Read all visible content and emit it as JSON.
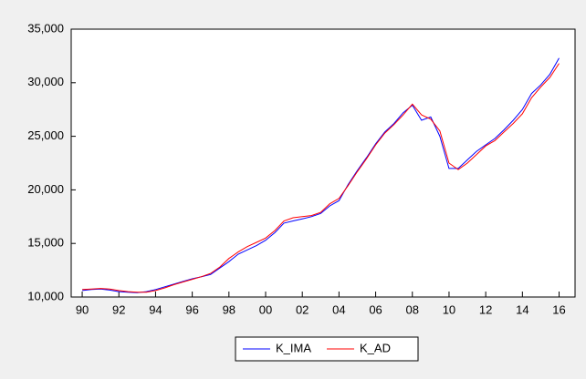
{
  "chart_data": {
    "type": "line",
    "x": [
      1990.0,
      1990.5,
      1991.0,
      1991.5,
      1992.0,
      1992.5,
      1993.0,
      1993.5,
      1994.0,
      1994.5,
      1995.0,
      1995.5,
      1996.0,
      1996.5,
      1997.0,
      1997.5,
      1998.0,
      1998.5,
      1999.0,
      1999.5,
      2000.0,
      2000.5,
      2001.0,
      2001.5,
      2002.0,
      2002.5,
      2003.0,
      2003.5,
      2004.0,
      2004.5,
      2005.0,
      2005.5,
      2006.0,
      2006.5,
      2007.0,
      2007.5,
      2008.0,
      2008.5,
      2009.0,
      2009.5,
      2010.0,
      2010.5,
      2011.0,
      2011.5,
      2012.0,
      2012.5,
      2013.0,
      2013.5,
      2014.0,
      2014.5,
      2015.0,
      2015.5,
      2016.0
    ],
    "series": [
      {
        "name": "K_IMA",
        "color": "#0000ff",
        "values": [
          10600,
          10700,
          10750,
          10650,
          10500,
          10450,
          10400,
          10500,
          10700,
          10950,
          11200,
          11450,
          11700,
          11900,
          12100,
          12700,
          13300,
          14000,
          14400,
          14800,
          15300,
          16000,
          16900,
          17100,
          17300,
          17500,
          17800,
          18500,
          19000,
          20500,
          21800,
          23000,
          24300,
          25400,
          26200,
          27200,
          27900,
          26500,
          26800,
          25000,
          22000,
          22000,
          22800,
          23600,
          24200,
          24800,
          25600,
          26500,
          27500,
          29000,
          29800,
          30800,
          32300
        ]
      },
      {
        "name": "K_AD",
        "color": "#ff0000",
        "values": [
          10700,
          10750,
          10800,
          10750,
          10600,
          10500,
          10450,
          10450,
          10600,
          10850,
          11150,
          11400,
          11650,
          11900,
          12200,
          12800,
          13600,
          14200,
          14700,
          15100,
          15500,
          16200,
          17100,
          17400,
          17500,
          17600,
          17900,
          18700,
          19200,
          20400,
          21700,
          22900,
          24200,
          25300,
          26100,
          27000,
          28000,
          27000,
          26600,
          25500,
          22500,
          21900,
          22500,
          23300,
          24100,
          24600,
          25400,
          26200,
          27100,
          28600,
          29600,
          30500,
          31800
        ]
      }
    ],
    "xlim": [
      1989.4,
      2016.87
    ],
    "xticks": [
      {
        "value": 1990,
        "label": "90"
      },
      {
        "value": 1992,
        "label": "92"
      },
      {
        "value": 1994,
        "label": "94"
      },
      {
        "value": 1996,
        "label": "96"
      },
      {
        "value": 1998,
        "label": "98"
      },
      {
        "value": 2000,
        "label": "00"
      },
      {
        "value": 2002,
        "label": "02"
      },
      {
        "value": 2004,
        "label": "04"
      },
      {
        "value": 2006,
        "label": "06"
      },
      {
        "value": 2008,
        "label": "08"
      },
      {
        "value": 2010,
        "label": "10"
      },
      {
        "value": 2012,
        "label": "12"
      },
      {
        "value": 2014,
        "label": "14"
      },
      {
        "value": 2016,
        "label": "16"
      }
    ],
    "ylim": [
      10000,
      35000
    ],
    "yticks": [
      {
        "value": 10000,
        "label": "10,000"
      },
      {
        "value": 15000,
        "label": "15,000"
      },
      {
        "value": 20000,
        "label": "20,000"
      },
      {
        "value": 25000,
        "label": "25,000"
      },
      {
        "value": 30000,
        "label": "30,000"
      },
      {
        "value": 35000,
        "label": "35,000"
      }
    ],
    "legend": "bottom"
  }
}
